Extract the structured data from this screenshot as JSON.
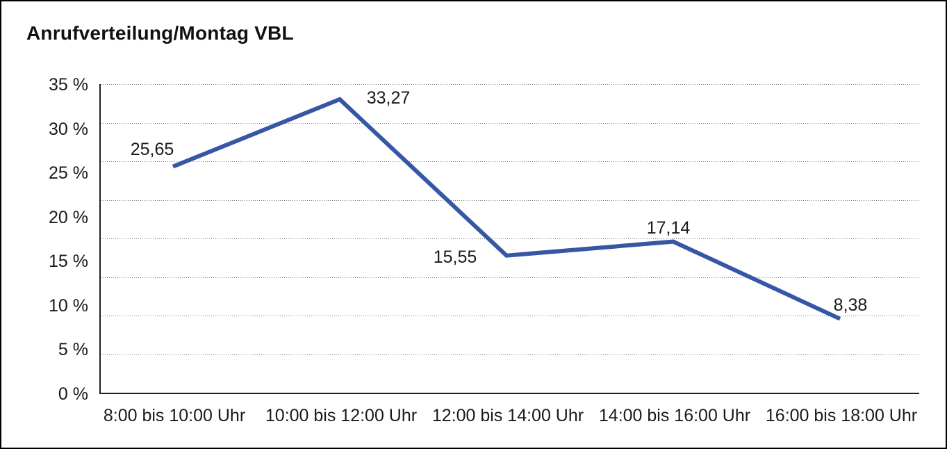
{
  "chart_data": {
    "type": "line",
    "title": "Anrufverteilung/Montag VBL",
    "categories": [
      "8:00 bis 10:00 Uhr",
      "10:00 bis 12:00 Uhr",
      "12:00 bis 14:00 Uhr",
      "14:00 bis 16:00 Uhr",
      "16:00 bis 18:00 Uhr"
    ],
    "values": [
      25.65,
      33.27,
      15.55,
      17.14,
      8.38
    ],
    "value_labels": [
      "25,65",
      "33,27",
      "15,55",
      "17,14",
      "8,38"
    ],
    "series_name": "Anrufverteilung Montag VBL",
    "xlabel": "",
    "ylabel": "",
    "y_ticks": [
      "35 %",
      "30 %",
      "25 %",
      "20 %",
      "15 %",
      "10 %",
      "5 %",
      "0 %"
    ],
    "ylim": [
      0,
      35
    ],
    "y_unit": "%",
    "decimal_separator": ",",
    "grid": "horizontal-dotted",
    "legend": "none",
    "line_color": "#3656A6",
    "axis_color": "#1f1f1f",
    "gridline_color": "#7b7b7b",
    "background_color": "#ffffff",
    "border_color": "#000000"
  }
}
